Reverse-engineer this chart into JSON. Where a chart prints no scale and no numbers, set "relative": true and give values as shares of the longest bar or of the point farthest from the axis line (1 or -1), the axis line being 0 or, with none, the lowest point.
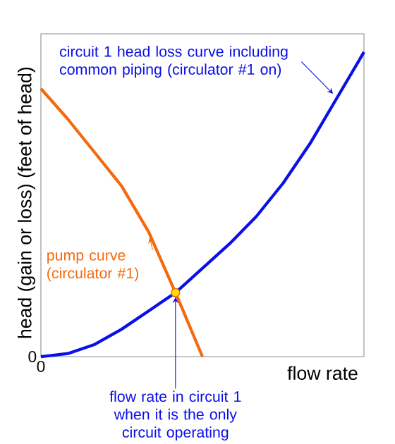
{
  "chart_data": {
    "type": "line",
    "relative": true,
    "xlabel": "flow rate",
    "ylabel": "head (gain or loss) (feet of head)",
    "categories": [
      null,
      null,
      null,
      null,
      null,
      null,
      null,
      null,
      null,
      null,
      null,
      null,
      null
    ],
    "series": [
      {
        "name": "circuit 1 head loss curve including common piping (circulator #1 on)",
        "color": "#0a10e6",
        "values": [
          0,
          0.01,
          0.04,
          0.09,
          0.15,
          0.21,
          0.29,
          0.37,
          0.46,
          0.57,
          0.7,
          0.85,
          1
        ]
      },
      {
        "name": "pump curve (circulator #1)",
        "color": "#f46a0e",
        "values": [
          0.88,
          0.78,
          0.67,
          0.56,
          0.41,
          0.21,
          0,
          null,
          null,
          null,
          null,
          null,
          null
        ]
      }
    ],
    "annotations": [
      "0",
      "0",
      {
        "text": "flow rate in circuit 1 when it is the only circuit operating",
        "y": 0.21
      }
    ]
  }
}
